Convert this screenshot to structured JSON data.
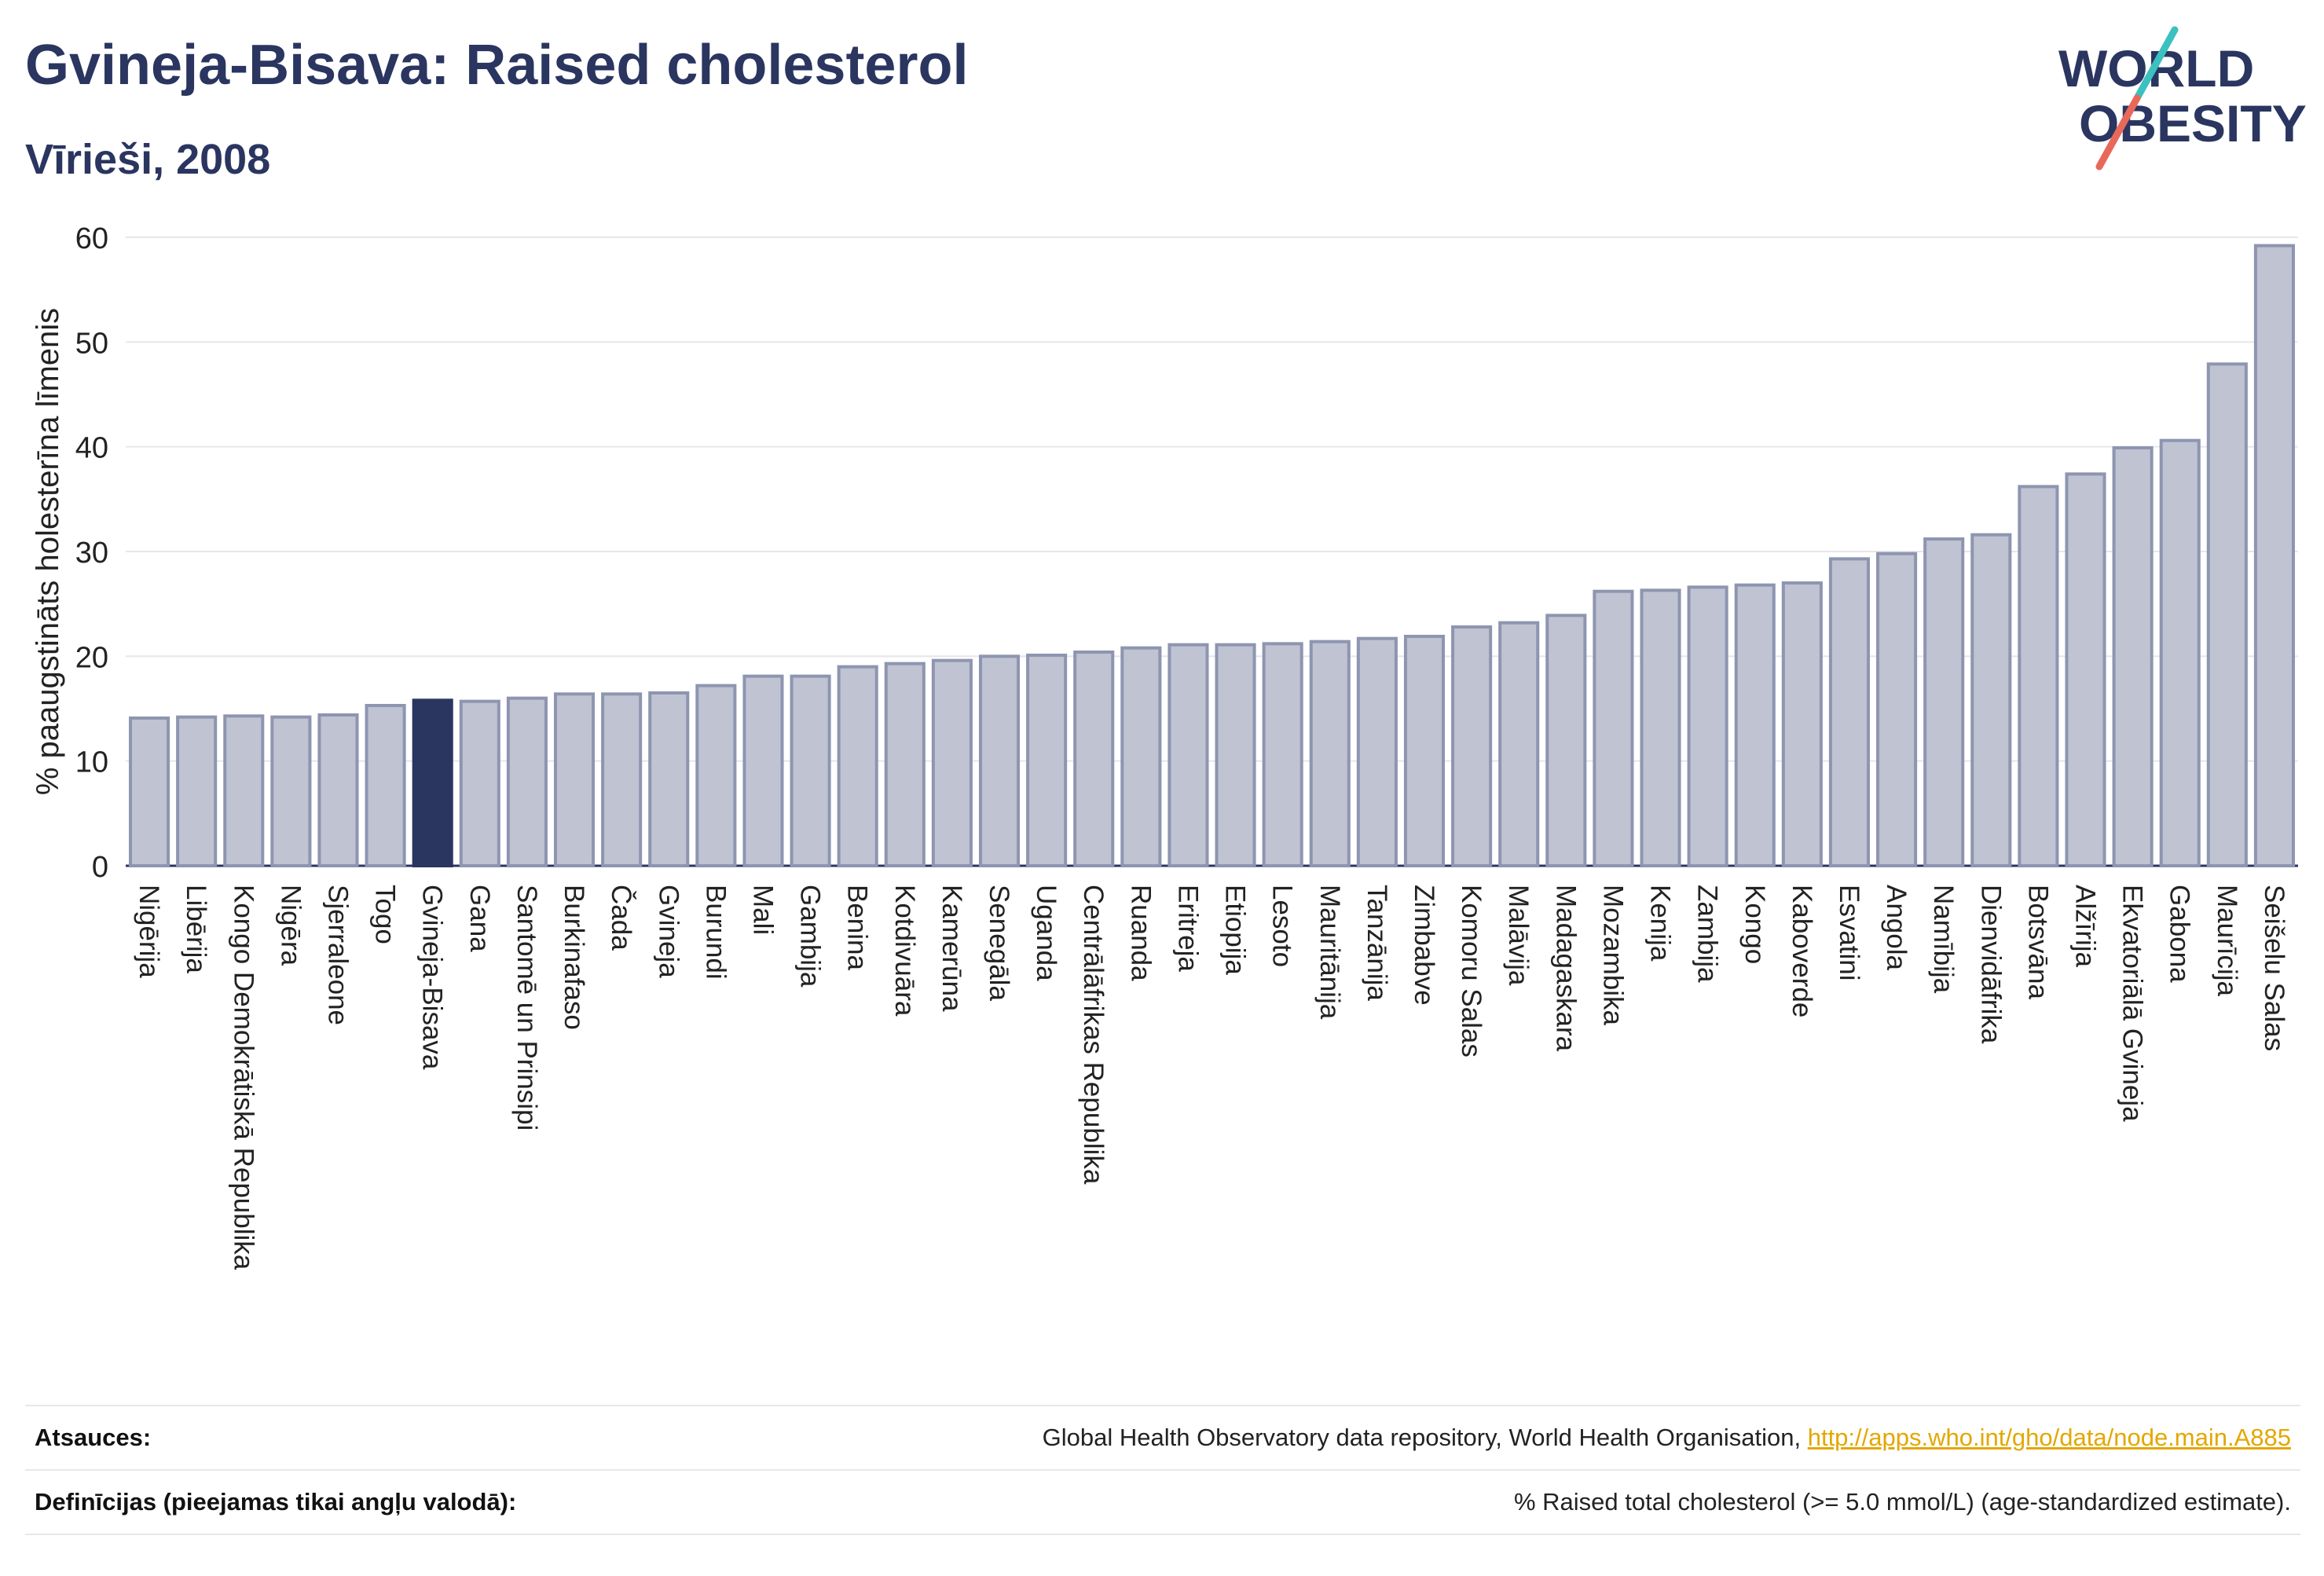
{
  "header": {
    "title": "Gvineja-Bisava: Raised cholesterol",
    "subtitle": "Vīrieši, 2008",
    "logo_line1": "WORLD",
    "logo_line2": "OBESITY"
  },
  "colors": {
    "title": "#2a3560",
    "bar": "#bfc3d2",
    "bar_stroke": "#8e95b0",
    "highlight": "#2a3560",
    "link": "#e3a700",
    "logo_slash_teal": "#3cc0c0",
    "logo_slash_red": "#e8685a"
  },
  "chart_data": {
    "type": "bar",
    "ylabel": "% paaugstināts holesterīna līmenis",
    "xlabel": "",
    "ylim": [
      0,
      60
    ],
    "yticks": [
      0,
      10,
      20,
      30,
      40,
      50,
      60
    ],
    "grid": true,
    "highlight": "Gvineja-Bisava",
    "categories": [
      "Nigērija",
      "Libērija",
      "Kongo Demokrātiskā Republika",
      "Nigēra",
      "Sjerraleone",
      "Togo",
      "Gvineja-Bisava",
      "Gana",
      "Santomē un Prinsipi",
      "Burkinafaso",
      "Čada",
      "Gvineja",
      "Burundi",
      "Mali",
      "Gambija",
      "Benina",
      "Kotdivuāra",
      "Kamerūna",
      "Senegāla",
      "Uganda",
      "Centrālāfrikas Republika",
      "Ruanda",
      "Eritreja",
      "Etiopija",
      "Lesoto",
      "Mauritānija",
      "Tanzānija",
      "Zimbabve",
      "Komoru Salas",
      "Malāvija",
      "Madagaskara",
      "Mozambika",
      "Kenija",
      "Zambija",
      "Kongo",
      "Kaboverde",
      "Esvatini",
      "Angola",
      "Namībija",
      "Dienvidāfrika",
      "Botsvāna",
      "Alžīrija",
      "Ekvatoriālā Gvineja",
      "Gabona",
      "Maurīcija",
      "Seišelu Salas"
    ],
    "values": [
      14.1,
      14.2,
      14.3,
      14.2,
      14.4,
      15.3,
      15.8,
      15.7,
      16.0,
      16.4,
      16.4,
      16.5,
      17.2,
      18.1,
      18.1,
      19.0,
      19.3,
      19.6,
      20.0,
      20.1,
      20.4,
      20.8,
      21.1,
      21.1,
      21.2,
      21.4,
      21.7,
      21.9,
      22.8,
      23.2,
      23.9,
      26.2,
      26.3,
      26.6,
      26.8,
      27.0,
      29.3,
      29.8,
      31.2,
      31.6,
      36.2,
      37.4,
      39.9,
      40.6,
      47.9,
      59.2
    ]
  },
  "footer": {
    "sources_label": "Atsauces:",
    "sources_text": "Global Health Observatory data repository, World Health Organisation, ",
    "sources_link": "http://apps.who.int/gho/data/node.main.A885",
    "definitions_label": "Definīcijas (pieejamas tikai angļu valodā):",
    "definitions_text": "% Raised total cholesterol (>= 5.0 mmol/L) (age-standardized estimate)."
  }
}
